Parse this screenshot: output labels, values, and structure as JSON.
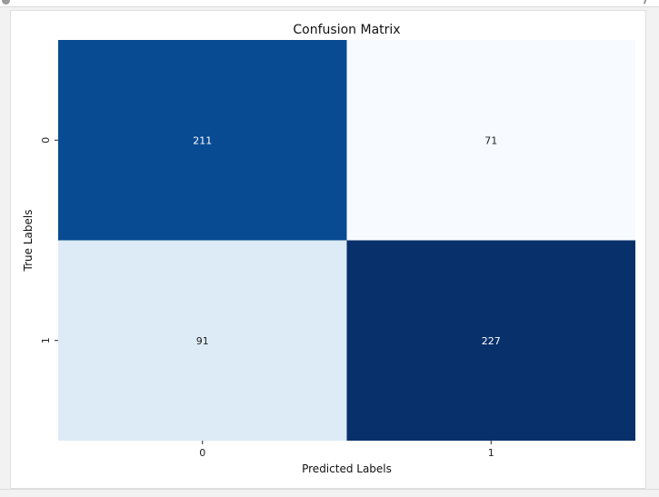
{
  "colors": {
    "low": "#f7fbff",
    "high": "#08306b",
    "text_dark": "#222222",
    "text_light": "#ffffff"
  },
  "chart_data": {
    "type": "heatmap",
    "title": "Confusion Matrix",
    "xlabel": "Predicted Labels",
    "ylabel": "True Labels",
    "x_categories": [
      "0",
      "1"
    ],
    "y_categories": [
      "0",
      "1"
    ],
    "values": [
      [
        211,
        71
      ],
      [
        91,
        227
      ]
    ],
    "colormap": "Blues",
    "colorbar": false,
    "annotated": true
  }
}
